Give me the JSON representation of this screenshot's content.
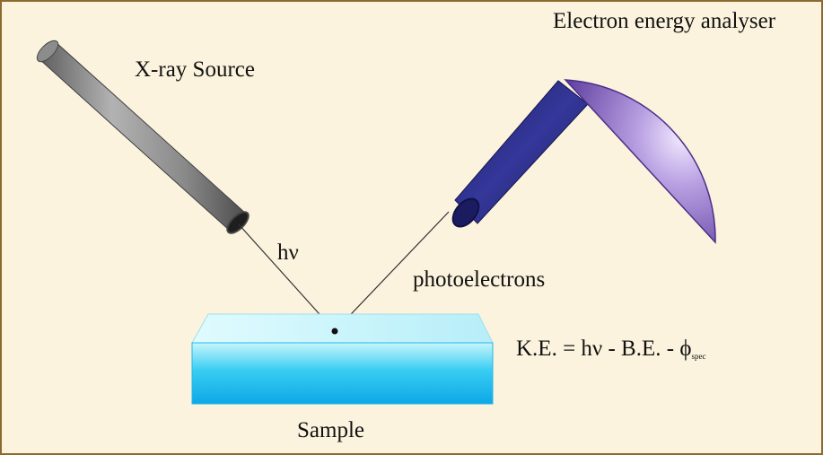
{
  "labels": {
    "xray_source": "X-ray Source",
    "analyser": "Electron energy analyser",
    "photon": "hν",
    "photoelectrons": "photoelectrons",
    "sample": "Sample"
  },
  "formula": {
    "text": "K.E. = hν - B.E. - ϕ",
    "subscript": "spec"
  },
  "colors": {
    "background": "#fcf3de",
    "source_tube": "#8f8f8f",
    "analyser_arm": "#24267a",
    "analyser_hemisphere": "#8a6bc4",
    "sample_top": "#c9f5fb",
    "sample_body": "#16b3eb"
  }
}
